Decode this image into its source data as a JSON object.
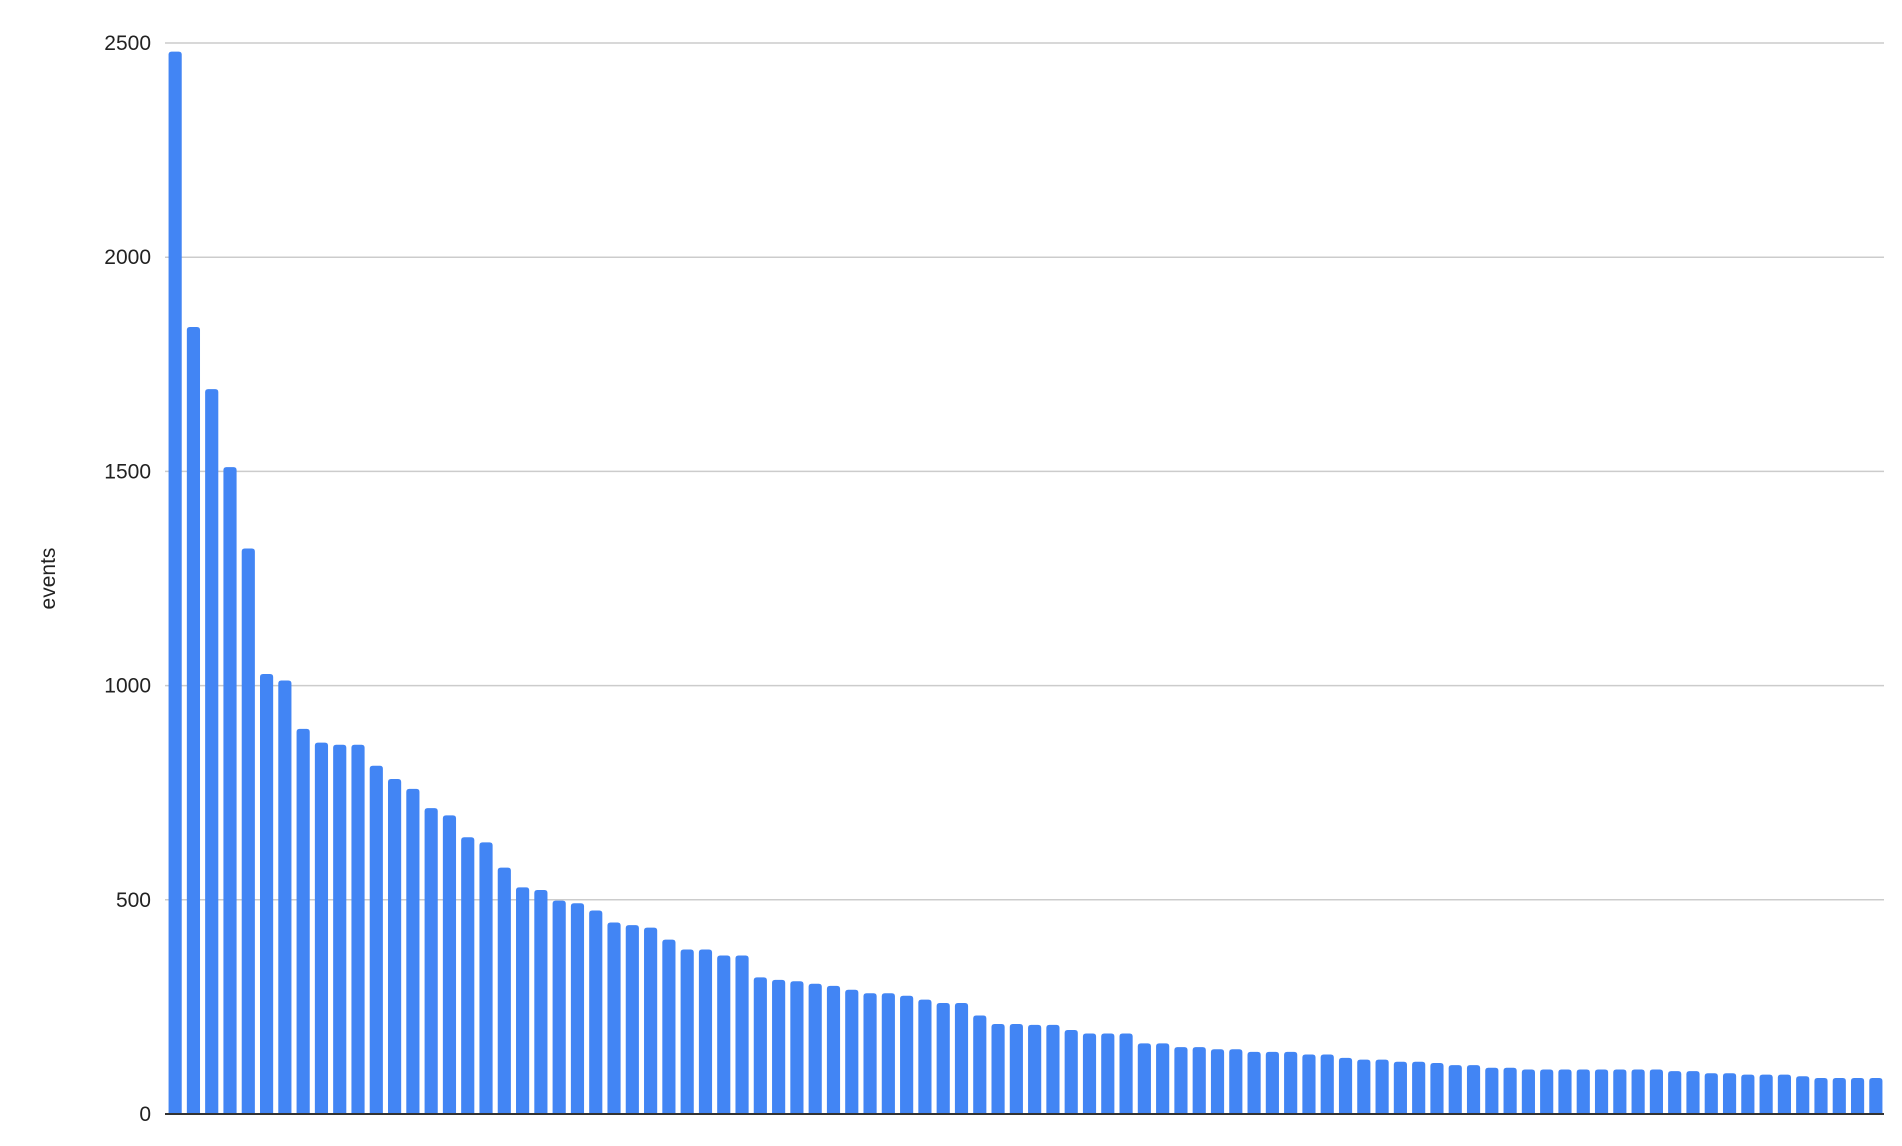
{
  "chart_data": {
    "type": "bar",
    "title": "",
    "xlabel": "",
    "ylabel": "events",
    "ylim": [
      0,
      2500
    ],
    "yticks": [
      "0",
      "500",
      "1000",
      "1500",
      "2000",
      "2500"
    ],
    "grid": true,
    "legend": "none",
    "bar_color": "#4285f4",
    "values": [
      2480,
      1837,
      1692,
      1510,
      1320,
      1027,
      1012,
      899,
      867,
      862,
      862,
      813,
      782,
      759,
      714,
      697,
      646,
      634,
      575,
      529,
      523,
      498,
      492,
      475,
      447,
      441,
      435,
      407,
      384,
      384,
      370,
      370,
      319,
      313,
      310,
      304,
      299,
      290,
      282,
      282,
      276,
      267,
      259,
      259,
      230,
      210,
      210,
      208,
      208,
      196,
      188,
      188,
      188,
      165,
      165,
      156,
      156,
      151,
      151,
      145,
      145,
      145,
      139,
      139,
      131,
      127,
      127,
      122,
      122,
      119,
      114,
      114,
      108,
      108,
      104,
      104,
      104,
      104,
      104,
      104,
      104,
      104,
      100,
      100,
      95,
      95,
      92,
      92,
      92,
      88,
      84,
      84,
      84,
      84
    ]
  }
}
